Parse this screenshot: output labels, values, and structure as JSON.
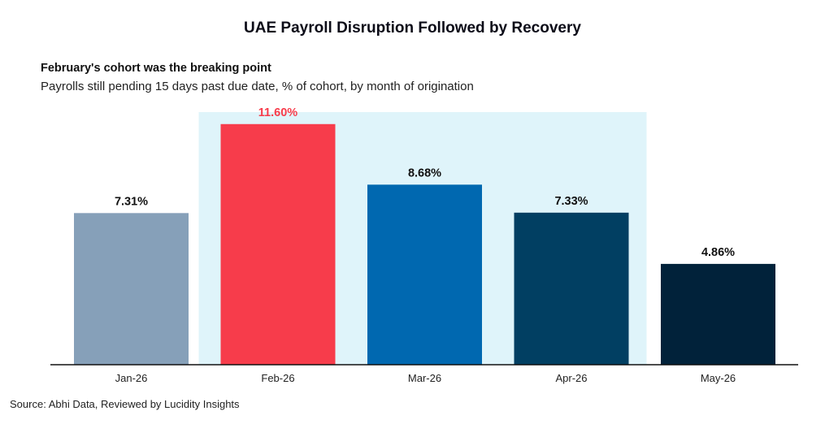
{
  "chart_data": {
    "type": "bar",
    "title": "UAE Payroll Disruption Followed by Recovery",
    "subtitle": "February's cohort was the breaking point",
    "description": "Payrolls still pending 15 days past due date, % of cohort, by month of origination",
    "categories": [
      "Jan-26",
      "Feb-26",
      "Mar-26",
      "Apr-26",
      "May-26"
    ],
    "values": [
      7.31,
      11.6,
      8.68,
      7.33,
      4.86
    ],
    "data_labels": [
      "7.31%",
      "11.60%",
      "8.68%",
      "7.33%",
      "4.86%"
    ],
    "bar_colors": [
      "#86a0b9",
      "#f73c4b",
      "#0068b0",
      "#013f62",
      "#01223a"
    ],
    "label_colors": [
      "#111111",
      "#f73c4b",
      "#111111",
      "#111111",
      "#111111"
    ],
    "highlight_color": "#dff4fa",
    "highlight_categories": [
      "Feb-26",
      "Apr-26"
    ],
    "ylim": [
      0,
      12.1
    ],
    "grid": false,
    "xlabel": "",
    "ylabel": ""
  },
  "source": "Source: Abhi Data, Reviewed by Lucidity Insights"
}
